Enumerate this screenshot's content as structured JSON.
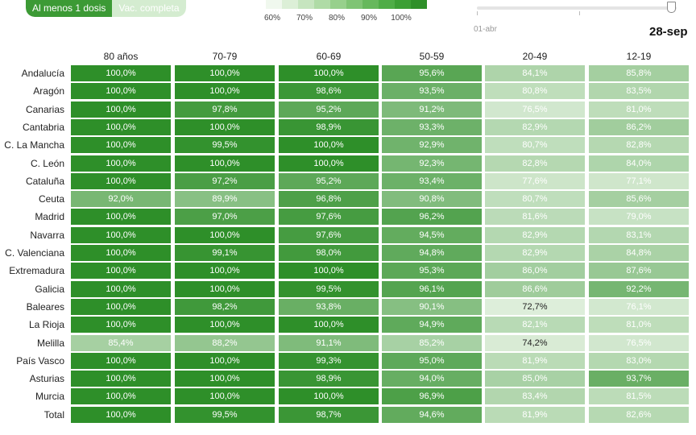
{
  "controls": {
    "toggle": [
      "Al menos 1 dosis",
      "Vac. completa"
    ],
    "date_start": "01-abr",
    "date_end": "28-sep"
  },
  "legend": {
    "colors": [
      "#f0f8ee",
      "#dcefd7",
      "#c6e5bf",
      "#afdba6",
      "#97d08c",
      "#7fc474",
      "#66b85c",
      "#4fad47",
      "#3c9f35",
      "#2f9029"
    ],
    "labels": [
      "60%",
      "70%",
      "80%",
      "90%",
      "100%"
    ]
  },
  "chart_data": {
    "type": "table",
    "columns": [
      "80 años",
      "70-79",
      "60-69",
      "50-59",
      "20-49",
      "12-19"
    ],
    "rows": [
      "Andalucía",
      "Aragón",
      "Canarias",
      "Cantabria",
      "C. La Mancha",
      "C. León",
      "Cataluña",
      "Ceuta",
      "Madrid",
      "Navarra",
      "C. Valenciana",
      "Extremadura",
      "Galicia",
      "Baleares",
      "La Rioja",
      "Melilla",
      "País Vasco",
      "Asturias",
      "Murcia",
      "Total"
    ],
    "values": [
      [
        "100,0%",
        "100,0%",
        "100,0%",
        "95,6%",
        "84,1%",
        "85,8%"
      ],
      [
        "100,0%",
        "100,0%",
        "98,6%",
        "93,5%",
        "80,8%",
        "83,5%"
      ],
      [
        "100,0%",
        "97,8%",
        "95,2%",
        "91,2%",
        "76,5%",
        "81,0%"
      ],
      [
        "100,0%",
        "100,0%",
        "98,9%",
        "93,3%",
        "82,9%",
        "86,2%"
      ],
      [
        "100,0%",
        "99,5%",
        "100,0%",
        "92,9%",
        "80,7%",
        "82,8%"
      ],
      [
        "100,0%",
        "100,0%",
        "100,0%",
        "92,3%",
        "82,8%",
        "84,0%"
      ],
      [
        "100,0%",
        "97,2%",
        "95,2%",
        "93,4%",
        "77,6%",
        "77,1%"
      ],
      [
        "92,0%",
        "89,9%",
        "96,8%",
        "90,8%",
        "80,7%",
        "85,6%"
      ],
      [
        "100,0%",
        "97,0%",
        "97,6%",
        "96,2%",
        "81,6%",
        "79,0%"
      ],
      [
        "100,0%",
        "100,0%",
        "97,6%",
        "94,5%",
        "82,9%",
        "83,1%"
      ],
      [
        "100,0%",
        "99,1%",
        "98,0%",
        "94,8%",
        "82,9%",
        "84,8%"
      ],
      [
        "100,0%",
        "100,0%",
        "100,0%",
        "95,3%",
        "86,0%",
        "87,6%"
      ],
      [
        "100,0%",
        "100,0%",
        "99,5%",
        "96,1%",
        "86,6%",
        "92,2%"
      ],
      [
        "100,0%",
        "98,2%",
        "93,8%",
        "90,1%",
        "72,7%",
        "76,1%"
      ],
      [
        "100,0%",
        "100,0%",
        "100,0%",
        "94,9%",
        "82,1%",
        "81,0%"
      ],
      [
        "85,4%",
        "88,2%",
        "91,1%",
        "85,2%",
        "74,2%",
        "76,5%"
      ],
      [
        "100,0%",
        "100,0%",
        "99,3%",
        "95,0%",
        "81,9%",
        "83,0%"
      ],
      [
        "100,0%",
        "100,0%",
        "98,9%",
        "94,0%",
        "85,0%",
        "93,7%"
      ],
      [
        "100,0%",
        "100,0%",
        "100,0%",
        "96,9%",
        "83,4%",
        "81,5%"
      ],
      [
        "100,0%",
        "99,5%",
        "98,7%",
        "94,6%",
        "81,9%",
        "82,6%"
      ]
    ],
    "color_scale": {
      "min": 60,
      "max": 100
    }
  }
}
